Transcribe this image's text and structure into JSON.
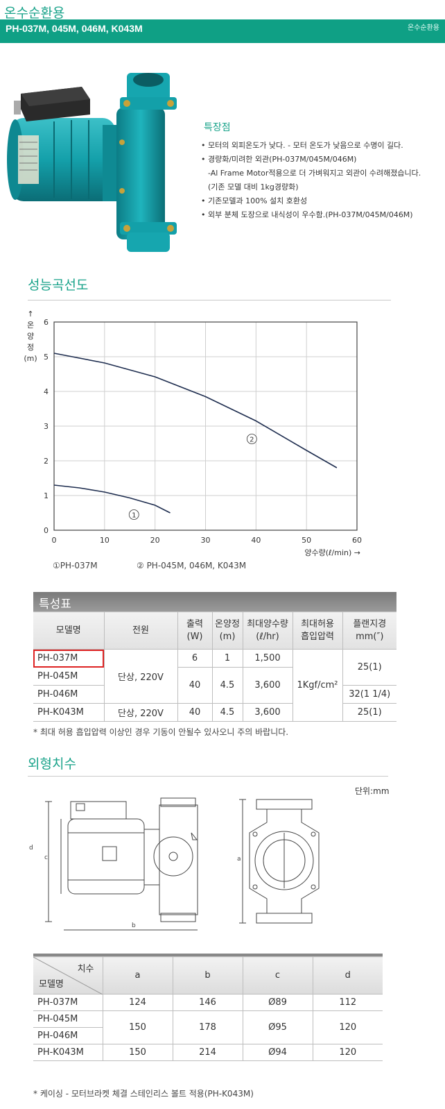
{
  "header": {
    "page_title": "온수순환용",
    "model_heading": "PH-037M, 045M, 046M, K043M",
    "bar_right": "온수순환용"
  },
  "features": {
    "title": "특장점",
    "items": [
      "• 모터의 외피온도가 낮다. - 모터 온도가 낮음으로 수명이 길다.",
      "• 경량화/미려한 외관(PH-037M/045M/046M)",
      "-Al Frame Motor적용으로 더 가벼워지고 외관이 수려해졌습니다.",
      "(기존 모델 대비 1kg경량화)",
      "• 기존모델과 100% 설치 호환성",
      "• 외부 분체 도장으로 내식성이 우수함.(PH-037M/045M/046M)"
    ]
  },
  "performance": {
    "section_title": "성능곡선도",
    "legend_1": "①PH-037M",
    "legend_2": "② PH-045M, 046M, K043M"
  },
  "chart_data": {
    "type": "line",
    "ylabel": "↑ 온 양 정 (m)",
    "xlabel": "양수량(ℓ/min) →",
    "xlim": [
      0,
      60
    ],
    "ylim": [
      0,
      6
    ],
    "x_ticks": [
      "0",
      "10",
      "20",
      "30",
      "40",
      "50",
      "60"
    ],
    "y_ticks": [
      "0",
      "1",
      "2",
      "3",
      "4",
      "5",
      "6"
    ],
    "grid": true,
    "series": [
      {
        "name": "①",
        "x": [
          0,
          5,
          10,
          15,
          20,
          23
        ],
        "y": [
          1.3,
          1.22,
          1.1,
          0.93,
          0.72,
          0.5
        ]
      },
      {
        "name": "②",
        "x": [
          0,
          10,
          20,
          30,
          40,
          50,
          56
        ],
        "y": [
          5.1,
          4.82,
          4.42,
          3.85,
          3.15,
          2.3,
          1.8
        ]
      }
    ]
  },
  "spec_table": {
    "title": "특성표",
    "headers": [
      "모델명",
      "전원",
      "출력\n(W)",
      "온양정\n(m)",
      "최대양수량\n(ℓ/hr)",
      "최대허용\n흡입압력",
      "플랜지경\nmm(″)"
    ],
    "models": [
      "PH-037M",
      "PH-045M",
      "PH-046M",
      "PH-K043M"
    ],
    "power_group": "단상, 220V",
    "power_k043": "단상, 220V",
    "output_037": "6",
    "output_045_046": "40",
    "output_k043": "40",
    "head_037": "1",
    "head_045_046": "4.5",
    "head_k043": "4.5",
    "flow_037": "1,500",
    "flow_045_046": "3,600",
    "flow_k043": "3,600",
    "suction": "1Kgf/cm²",
    "flange_037_045": "25(1)",
    "flange_046": "32(1 1/4)",
    "flange_k043": "25(1)",
    "note": "* 최대 허용 흡입압력 이상인 경우 기동이 안될수 있사오니 주의 바랍니다."
  },
  "dimensions": {
    "section_title": "외형치수",
    "unit": "단위:mm",
    "labels": {
      "a": "a",
      "b": "b",
      "c": "c",
      "d": "d"
    },
    "table_header_dim": "치수",
    "table_header_model": "모델명",
    "columns": [
      "a",
      "b",
      "c",
      "d"
    ],
    "rows": [
      {
        "model": "PH-037M",
        "a": "124",
        "b": "146",
        "c": "Ø89",
        "d": "112"
      },
      {
        "model": "PH-045M",
        "a": "150",
        "b": "178",
        "c": "Ø95",
        "d": "120"
      },
      {
        "model": "PH-046M"
      },
      {
        "model": "PH-K043M",
        "a": "150",
        "b": "214",
        "c": "Ø94",
        "d": "120"
      }
    ],
    "note": "* 케이싱 - 모터브라켓 체결 스테인리스 볼트 적용(PH-K043M)"
  },
  "colors": {
    "brand_green": "#0fa085",
    "title_green": "#19a38a",
    "pump_body": "#1a9aa3",
    "highlight_red": "#dd2222"
  }
}
